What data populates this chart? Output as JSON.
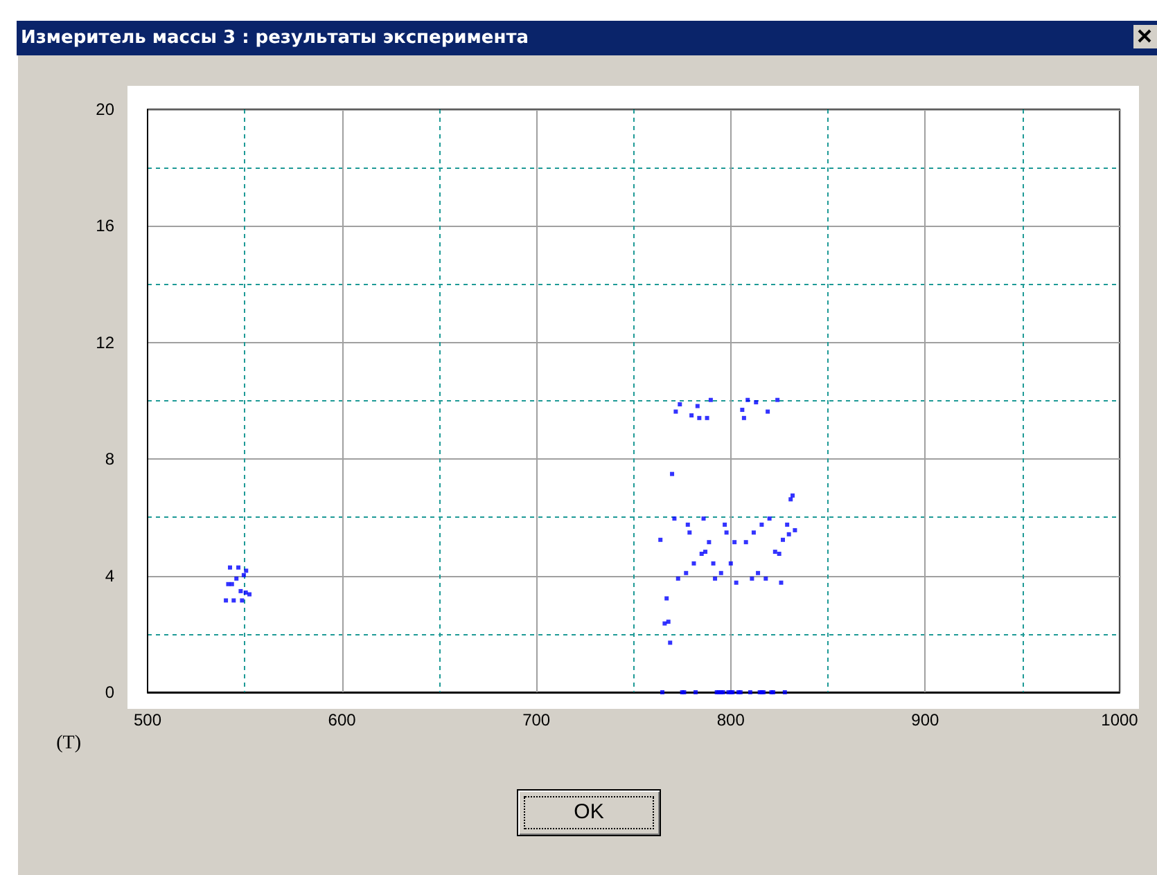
{
  "chart_data": {
    "type": "scatter",
    "title": "Измеритель массы 3 :  результаты эксперимента",
    "xlabel": "(T)",
    "annotations": [
      "OK"
    ],
    "xlim": [
      500,
      1000
    ],
    "xticks": [
      500,
      {
        "value": 550,
        "label": null
      },
      600,
      {
        "value": 650,
        "label": null
      },
      700,
      {
        "value": 750,
        "label": null
      },
      800,
      {
        "value": 850,
        "label": null
      },
      900,
      {
        "value": 950,
        "label": null
      },
      1000
    ],
    "ylim": [
      0,
      20
    ],
    "yticks": [
      0,
      {
        "value": 2,
        "label": null
      },
      4,
      {
        "value": 6,
        "label": null
      },
      8,
      {
        "value": 10,
        "label": null
      },
      12,
      {
        "value": 14,
        "label": null
      },
      16,
      {
        "value": 18,
        "label": null
      },
      20
    ],
    "grid": true,
    "marker": "square",
    "series": [
      {
        "color": "#0000ff",
        "x": [
          542.4,
          546.7,
          550.7,
          549.5,
          545.7,
          541.5,
          543.4,
          547.9,
          550.5,
          552.4,
          540.3,
          544.3,
          548.6,
          773.8,
          771.7,
          782.9,
          779.8,
          783.8,
          787.8,
          789.7,
          805.9,
          806.8,
          808.7,
          813.0,
          819.0,
          824.0,
          769.8,
          831.8,
          830.8,
          771.0,
          777.9,
          786.0,
          796.9,
          815.9,
          819.9,
          829.0,
          778.8,
          797.8,
          811.8,
          833.0,
          829.9,
          763.8,
          788.8,
          801.9,
          807.8,
          826.8,
          786.9,
          785.0,
          822.8,
          824.9,
          781.0,
          791.0,
          800.0,
          777.0,
          795.0,
          814.0,
          772.9,
          791.9,
          810.9,
          818.0,
          802.8,
          825.9,
          767.0,
          767.9,
          766.0,
          768.8,
          764.8,
          775.0,
          776.0,
          781.9,
          792.8,
          793.8,
          795.0,
          796.0,
          798.8,
          800.0,
          800.9,
          804.0,
          805.0,
          810.0,
          814.9,
          815.9,
          816.8,
          820.9,
          821.8,
          827.8
        ],
        "values": [
          4.28,
          4.28,
          4.17,
          4.02,
          3.9,
          3.71,
          3.71,
          3.47,
          3.42,
          3.36,
          3.15,
          3.15,
          3.15,
          9.88,
          9.63,
          9.82,
          9.5,
          9.41,
          9.41,
          10.03,
          9.69,
          9.41,
          10.03,
          9.95,
          9.63,
          10.03,
          7.49,
          6.75,
          6.62,
          5.96,
          5.75,
          5.96,
          5.75,
          5.75,
          5.96,
          5.75,
          5.48,
          5.48,
          5.48,
          5.56,
          5.42,
          5.23,
          5.15,
          5.15,
          5.15,
          5.23,
          4.82,
          4.75,
          4.82,
          4.75,
          4.42,
          4.42,
          4.42,
          4.09,
          4.09,
          4.09,
          3.9,
          3.9,
          3.9,
          3.9,
          3.76,
          3.76,
          3.22,
          2.42,
          2.36,
          1.7,
          0,
          0,
          0,
          0,
          0,
          0,
          0,
          0,
          0,
          0,
          0,
          0,
          0,
          0,
          0,
          0,
          0,
          0,
          0,
          0
        ]
      }
    ]
  }
}
